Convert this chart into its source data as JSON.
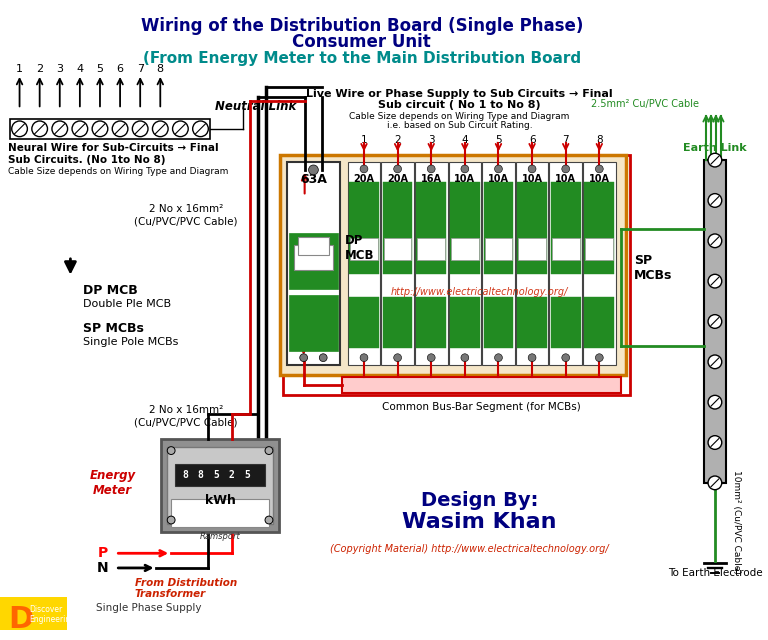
{
  "title_line1": "Wiring of the Distribution Board (Single Phase)",
  "title_line2": "Consumer Unit",
  "title_line3": "(From Energy Meter to the Main Distribution Board",
  "title_color1": "#000080",
  "title_color2": "#000080",
  "title_color3": "#008B8B",
  "bg_color": "#FFFFFF",
  "sp_labels": [
    "20A",
    "20A",
    "16A",
    "10A",
    "10A",
    "10A",
    "10A",
    "10A"
  ],
  "dp_label": "63A",
  "neutral_wire_color": "#000000",
  "live_wire_color": "#CC0000",
  "earth_wire_color": "#228B22",
  "busbar_color": "#CC0000",
  "annotation_color": "#CC0000",
  "watermark": "http://www.electricaltechnology.org/",
  "design_by1": "Design By:",
  "design_by2": "Wasim Khan",
  "copyright": "(Copyright Material) http://www.electricaltechnology.org/",
  "bottom_label1": "From Distribution",
  "bottom_label2": "Transformer",
  "bottom_label3": "Single Phase Supply",
  "board_bg": "#F5E6C8",
  "board_border": "#CC7700",
  "earth_bar_color": "#B0B0B0",
  "mcb_green": "#228B22",
  "mcb_white": "#FFFFFF",
  "meter_bg": "#909090"
}
